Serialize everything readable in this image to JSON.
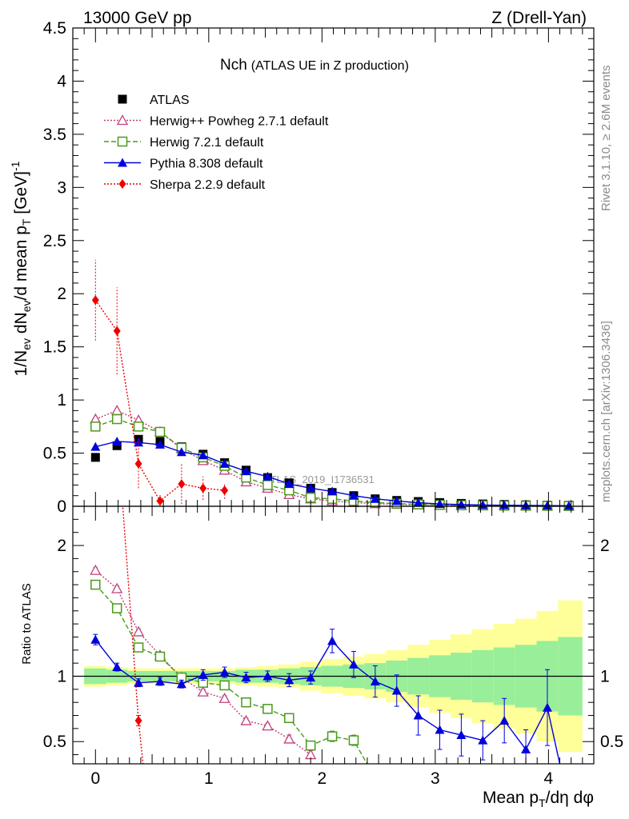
{
  "header": {
    "energy": "13000 GeV pp",
    "process": "Z (Drell-Yan)",
    "plot_title": "Nch",
    "plot_subtitle": "(ATLAS UE in Z production)",
    "watermark": "ATLAS_2019_I1736531",
    "side_rivet": "Rivet 3.1.10, ≥ 2.6M events",
    "side_mcplots": "mcplots.cern.ch [arXiv:1306.3436]"
  },
  "axes": {
    "ylabel_main": "1/N_ev dN_ev/d mean p_T [GeV]^-1",
    "ylabel_ratio": "Ratio to ATLAS",
    "xlabel": "Mean p_T/dη dφ"
  },
  "legend": [
    {
      "id": "atlas",
      "label": "ATLAS"
    },
    {
      "id": "herwigpp",
      "label": "Herwig++ Powheg 2.7.1 default"
    },
    {
      "id": "herwig7",
      "label": "Herwig 7.2.1 default"
    },
    {
      "id": "pythia",
      "label": "Pythia 8.308 default"
    },
    {
      "id": "sherpa",
      "label": "Sherpa 2.2.9 default"
    }
  ],
  "chart_data": {
    "type": "line",
    "x": [
      0.0,
      0.19,
      0.38,
      0.57,
      0.76,
      0.95,
      1.14,
      1.33,
      1.52,
      1.71,
      1.9,
      2.09,
      2.28,
      2.47,
      2.66,
      2.85,
      3.04,
      3.23,
      3.42,
      3.61,
      3.8,
      3.99,
      4.18
    ],
    "main": {
      "xlim": [
        -0.2,
        4.4
      ],
      "ylim": [
        0,
        4.5
      ],
      "yticks": [
        0,
        0.5,
        1,
        1.5,
        2,
        2.5,
        3,
        3.5,
        4,
        4.5
      ],
      "ytick_labels": [
        "0",
        "0.5",
        "1",
        "1.5",
        "2",
        "2.5",
        "3",
        "3.5",
        "4",
        "4.5"
      ],
      "series": [
        {
          "name": "ATLAS",
          "color": "#000000",
          "values": [
            0.46,
            0.57,
            0.63,
            0.61,
            0.56,
            0.49,
            0.41,
            0.34,
            0.27,
            0.22,
            0.17,
            0.13,
            0.1,
            0.07,
            0.055,
            0.045,
            0.035,
            0.027,
            0.022,
            0.017,
            0.014,
            0.011,
            0.009
          ]
        },
        {
          "name": "Herwig++ Powheg 2.7.1 default",
          "color": "#c0407a",
          "values": [
            0.82,
            0.9,
            0.81,
            0.7,
            0.54,
            0.43,
            0.34,
            0.23,
            0.17,
            0.11,
            0.07,
            0.05,
            0.035,
            0.025,
            0.018,
            0.013,
            0.01,
            0.008,
            0.006,
            0.005,
            0.004,
            0.003,
            0.003
          ]
        },
        {
          "name": "Herwig 7.2.1 default",
          "color": "#4a9a1a",
          "values": [
            0.75,
            0.82,
            0.75,
            0.7,
            0.55,
            0.46,
            0.38,
            0.27,
            0.2,
            0.15,
            0.08,
            0.07,
            0.05,
            0.035,
            0.025,
            0.018,
            0.013,
            0.01,
            0.008,
            0.006,
            0.005,
            0.004,
            0.003
          ]
        },
        {
          "name": "Pythia 8.308 default",
          "color": "#0000dd",
          "values": [
            0.56,
            0.61,
            0.6,
            0.58,
            0.51,
            0.48,
            0.4,
            0.33,
            0.28,
            0.21,
            0.17,
            0.14,
            0.1,
            0.07,
            0.05,
            0.033,
            0.022,
            0.016,
            0.012,
            0.01,
            0.008,
            0.007,
            0.005
          ]
        },
        {
          "name": "Sherpa 2.2.9 default",
          "color": "#ee0000",
          "x": [
            0.0,
            0.19,
            0.38,
            0.57,
            0.76,
            0.95,
            1.14
          ],
          "values": [
            1.94,
            1.65,
            0.4,
            0.05,
            0.21,
            0.17,
            0.15
          ],
          "err_low": [
            1.56,
            1.24,
            0.17,
            0.0,
            0.02,
            0.06,
            0.07
          ],
          "err_high": [
            2.32,
            2.06,
            0.63,
            0.12,
            0.4,
            0.28,
            0.22
          ]
        }
      ]
    },
    "ratio": {
      "ylim": [
        0.33,
        2.3
      ],
      "yticks": [
        0.5,
        1,
        2
      ],
      "ytick_labels": [
        "0.5",
        "1",
        "2"
      ],
      "band_edges": [
        -0.1,
        0.095,
        0.285,
        0.475,
        0.665,
        0.855,
        1.045,
        1.235,
        1.425,
        1.615,
        1.805,
        1.995,
        2.185,
        2.375,
        2.565,
        2.755,
        2.945,
        3.135,
        3.325,
        3.515,
        3.705,
        3.895,
        4.085,
        4.3
      ],
      "band_inner": [
        0.06,
        0.05,
        0.04,
        0.04,
        0.04,
        0.04,
        0.04,
        0.05,
        0.05,
        0.06,
        0.07,
        0.08,
        0.09,
        0.1,
        0.12,
        0.14,
        0.16,
        0.18,
        0.2,
        0.22,
        0.24,
        0.27,
        0.3
      ],
      "band_outer": [
        0.08,
        0.07,
        0.06,
        0.06,
        0.06,
        0.06,
        0.06,
        0.07,
        0.08,
        0.09,
        0.11,
        0.13,
        0.15,
        0.17,
        0.2,
        0.24,
        0.28,
        0.32,
        0.36,
        0.4,
        0.44,
        0.5,
        0.58
      ],
      "series": [
        {
          "name": "Herwig++ Powheg 2.7.1 default",
          "color": "#c0407a",
          "x": [
            0.0,
            0.19,
            0.38,
            0.57,
            0.76,
            0.95,
            1.14,
            1.33,
            1.52,
            1.71,
            1.9
          ],
          "values": [
            1.81,
            1.67,
            1.34,
            1.16,
            0.99,
            0.88,
            0.83,
            0.66,
            0.62,
            0.52,
            0.4
          ],
          "err": [
            0.02,
            0.02,
            0.02,
            0.02,
            0.02,
            0.02,
            0.02,
            0.02,
            0.02,
            0.03,
            0.03
          ]
        },
        {
          "name": "Herwig 7.2.1 default",
          "color": "#4a9a1a",
          "x": [
            0.0,
            0.19,
            0.38,
            0.57,
            0.76,
            0.95,
            1.14,
            1.33,
            1.52,
            1.71,
            1.9,
            2.09,
            2.28
          ],
          "values": [
            1.7,
            1.52,
            1.22,
            1.15,
            0.99,
            0.95,
            0.93,
            0.8,
            0.75,
            0.68,
            0.47,
            0.54,
            0.51
          ],
          "err": [
            0.02,
            0.02,
            0.02,
            0.02,
            0.02,
            0.02,
            0.02,
            0.02,
            0.02,
            0.03,
            0.03,
            0.04,
            0.04
          ],
          "tail_to": [
            2.45,
            0.25
          ]
        },
        {
          "name": "Pythia 8.308 default",
          "color": "#0000dd",
          "x": [
            0.0,
            0.19,
            0.38,
            0.57,
            0.76,
            0.95,
            1.14,
            1.33,
            1.52,
            1.71,
            1.9,
            2.09,
            2.28,
            2.47,
            2.66,
            2.85,
            3.04,
            3.23,
            3.42,
            3.61,
            3.8,
            3.99
          ],
          "values": [
            1.28,
            1.07,
            0.95,
            0.96,
            0.94,
            1.01,
            1.03,
            0.99,
            1.0,
            0.97,
            0.99,
            1.27,
            1.09,
            0.96,
            0.89,
            0.7,
            0.59,
            0.55,
            0.51,
            0.66,
            0.44,
            0.76
          ],
          "err": [
            0.04,
            0.03,
            0.03,
            0.03,
            0.03,
            0.04,
            0.04,
            0.04,
            0.04,
            0.05,
            0.05,
            0.09,
            0.1,
            0.12,
            0.12,
            0.15,
            0.15,
            0.16,
            0.15,
            0.17,
            0.15,
            0.29
          ],
          "tail_to": [
            4.12,
            0.25
          ]
        },
        {
          "name": "Sherpa 2.2.9 default",
          "color": "#ee0000",
          "x": [
            0.19,
            0.38,
            0.43
          ],
          "values": [
            2.9,
            0.66,
            0.25
          ],
          "err": [
            0.0,
            0.04,
            0.0
          ]
        }
      ]
    },
    "xticks": [
      0,
      1,
      2,
      3,
      4
    ],
    "xtick_labels": [
      "0",
      "1",
      "2",
      "3",
      "4"
    ]
  }
}
